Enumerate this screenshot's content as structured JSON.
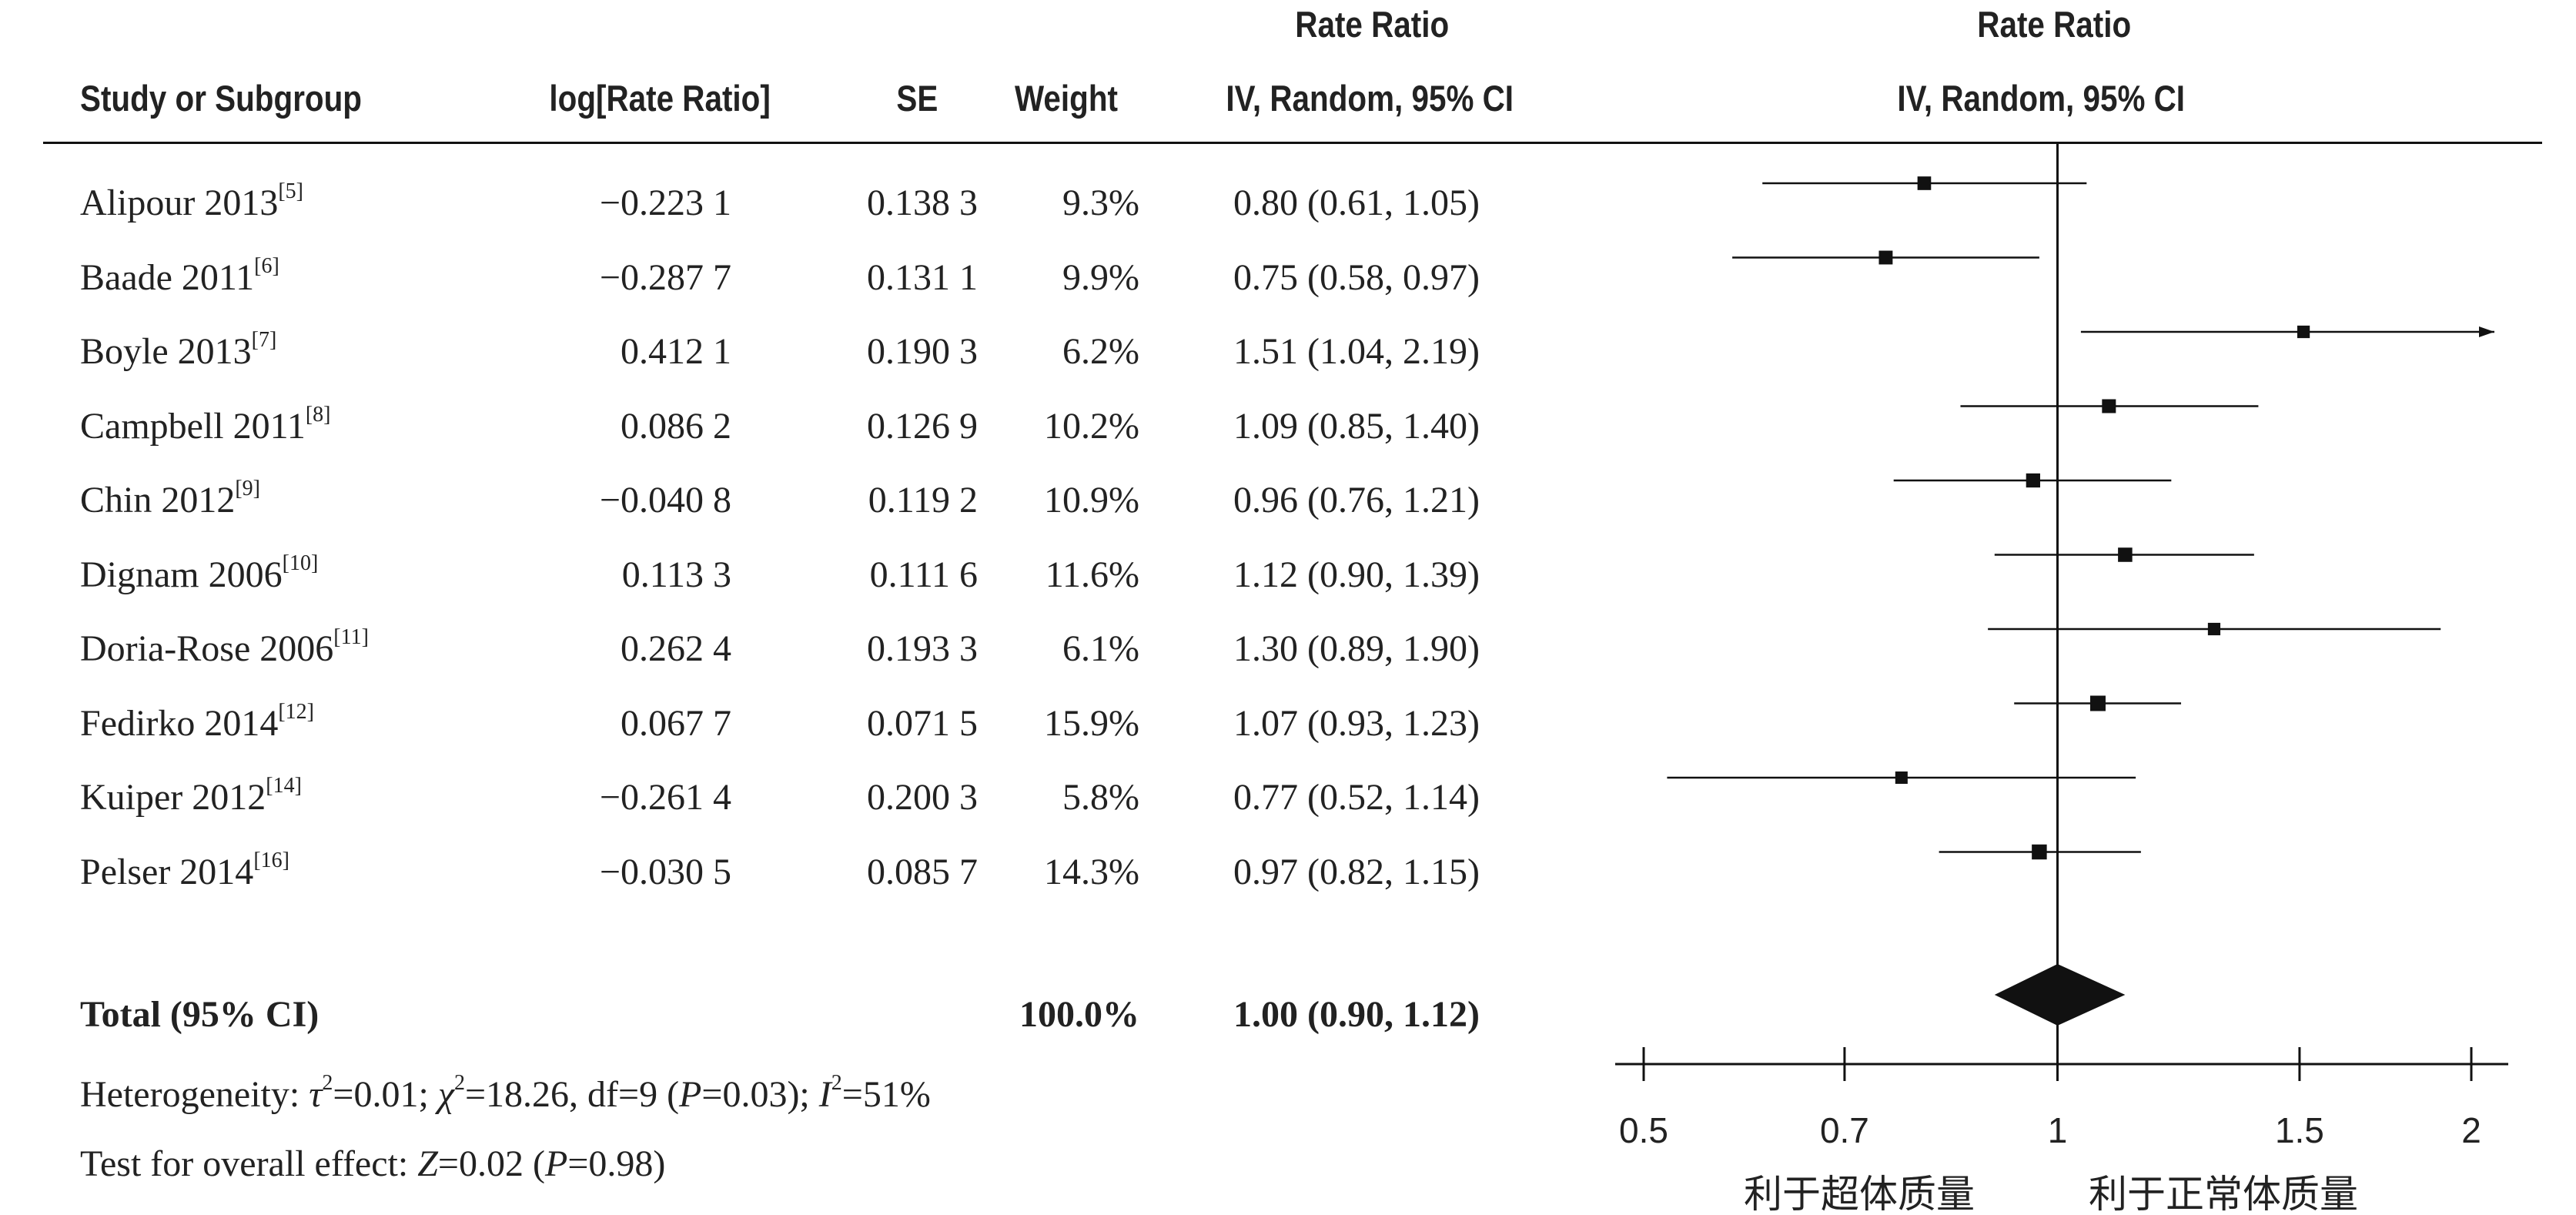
{
  "headers": {
    "study": "Study or Subgroup",
    "log_rr": "log[Rate Ratio]",
    "se": "SE",
    "weight": "Weight",
    "rr_title": "Rate Ratio",
    "rr_method": "IV, Random, 95% CI",
    "plot_title": "Rate Ratio",
    "plot_method": "IV, Random, 95% CI"
  },
  "studies": [
    {
      "name": "Alipour 2013",
      "ref": "[5]",
      "log_rr": "−0.223 1",
      "se": "0.138 3",
      "weight": "9.3%",
      "ci_text": "0.80 (0.61, 1.05)"
    },
    {
      "name": "Baade 2011",
      "ref": "[6]",
      "log_rr": "−0.287 7",
      "se": "0.131 1",
      "weight": "9.9%",
      "ci_text": "0.75 (0.58, 0.97)"
    },
    {
      "name": "Boyle 2013",
      "ref": "[7]",
      "log_rr": "0.412 1",
      "se": "0.190 3",
      "weight": "6.2%",
      "ci_text": "1.51 (1.04, 2.19)"
    },
    {
      "name": "Campbell 2011",
      "ref": "[8]",
      "log_rr": "0.086 2",
      "se": "0.126 9",
      "weight": "10.2%",
      "ci_text": "1.09 (0.85, 1.40)"
    },
    {
      "name": "Chin 2012",
      "ref": "[9]",
      "log_rr": "−0.040 8",
      "se": "0.119 2",
      "weight": "10.9%",
      "ci_text": "0.96 (0.76, 1.21)"
    },
    {
      "name": "Dignam 2006",
      "ref": "[10]",
      "log_rr": "0.113 3",
      "se": "0.111 6",
      "weight": "11.6%",
      "ci_text": "1.12 (0.90, 1.39)"
    },
    {
      "name": "Doria-Rose 2006",
      "ref": "[11]",
      "log_rr": "0.262 4",
      "se": "0.193 3",
      "weight": "6.1%",
      "ci_text": "1.30 (0.89, 1.90)"
    },
    {
      "name": "Fedirko 2014",
      "ref": "[12]",
      "log_rr": "0.067 7",
      "se": "0.071 5",
      "weight": "15.9%",
      "ci_text": "1.07 (0.93, 1.23)"
    },
    {
      "name": "Kuiper 2012",
      "ref": "[14]",
      "log_rr": "−0.261 4",
      "se": "0.200 3",
      "weight": "5.8%",
      "ci_text": "0.77 (0.52, 1.14)"
    },
    {
      "name": "Pelser 2014",
      "ref": "[16]",
      "log_rr": "−0.030 5",
      "se": "0.085 7",
      "weight": "14.3%",
      "ci_text": "0.97 (0.82, 1.15)"
    }
  ],
  "total": {
    "label": "Total (95% CI)",
    "weight": "100.0%",
    "ci_text": "1.00 (0.90, 1.12)"
  },
  "heterogeneity": {
    "prefix": "Heterogeneity: ",
    "tau_sym": "τ",
    "tau_rest": "=0.01; ",
    "chi_sym": "χ",
    "chi_rest": "=18.26, df=9 (",
    "p_sym": "P",
    "p_rest": "=0.03); ",
    "i_sym": "I",
    "i_rest": "=51%",
    "sq": "2"
  },
  "overall_effect": {
    "prefix": "Test for overall effect: ",
    "z_sym": "Z",
    "z_rest": "=0.02 (",
    "p_sym": "P",
    "p_rest": "=0.98)"
  },
  "axis": {
    "tick_labels": [
      "0.5",
      "0.7",
      "1",
      "1.5",
      "2"
    ],
    "favours_left": "利于超体质量",
    "favours_right": "利于正常体质量"
  },
  "chart_data": {
    "type": "forest",
    "scale": "log",
    "xlim": [
      0.5,
      2
    ],
    "ticks": [
      0.5,
      0.7,
      1,
      1.5,
      2
    ],
    "null_line": 1,
    "studies": [
      {
        "name": "Alipour 2013",
        "rr": 0.8,
        "lo": 0.61,
        "hi": 1.05,
        "weight": 9.3
      },
      {
        "name": "Baade 2011",
        "rr": 0.75,
        "lo": 0.58,
        "hi": 0.97,
        "weight": 9.9
      },
      {
        "name": "Boyle 2013",
        "rr": 1.51,
        "lo": 1.04,
        "hi": 2.19,
        "weight": 6.2
      },
      {
        "name": "Campbell 2011",
        "rr": 1.09,
        "lo": 0.85,
        "hi": 1.4,
        "weight": 10.2
      },
      {
        "name": "Chin 2012",
        "rr": 0.96,
        "lo": 0.76,
        "hi": 1.21,
        "weight": 10.9
      },
      {
        "name": "Dignam 2006",
        "rr": 1.12,
        "lo": 0.9,
        "hi": 1.39,
        "weight": 11.6
      },
      {
        "name": "Doria-Rose 2006",
        "rr": 1.3,
        "lo": 0.89,
        "hi": 1.9,
        "weight": 6.1
      },
      {
        "name": "Fedirko 2014",
        "rr": 1.07,
        "lo": 0.93,
        "hi": 1.23,
        "weight": 15.9
      },
      {
        "name": "Kuiper 2012",
        "rr": 0.77,
        "lo": 0.52,
        "hi": 1.14,
        "weight": 5.8
      },
      {
        "name": "Pelser 2014",
        "rr": 0.97,
        "lo": 0.82,
        "hi": 1.15,
        "weight": 14.3
      }
    ],
    "pooled": {
      "rr": 1.0,
      "lo": 0.9,
      "hi": 1.12,
      "weight": 100.0
    },
    "heterogeneity": {
      "tau2": 0.01,
      "chi2": 18.26,
      "df": 9,
      "p": 0.03,
      "i2": 51
    },
    "overall_effect": {
      "z": 0.02,
      "p": 0.98
    }
  }
}
